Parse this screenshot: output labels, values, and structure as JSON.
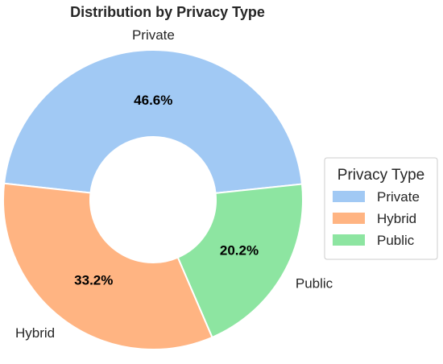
{
  "chart_data": {
    "type": "pie",
    "donut": true,
    "title": "Distribution by Privacy Type",
    "categories": [
      "Private",
      "Hybrid",
      "Public"
    ],
    "values": [
      46.6,
      33.2,
      20.2
    ],
    "percent_labels": [
      "46.6%",
      "33.2%",
      "20.2%"
    ],
    "colors": [
      "#a1c9f4",
      "#ffb482",
      "#8de5a1"
    ],
    "legend": {
      "title": "Privacy Type",
      "placement": "right",
      "entries": [
        "Private",
        "Hybrid",
        "Public"
      ]
    }
  }
}
